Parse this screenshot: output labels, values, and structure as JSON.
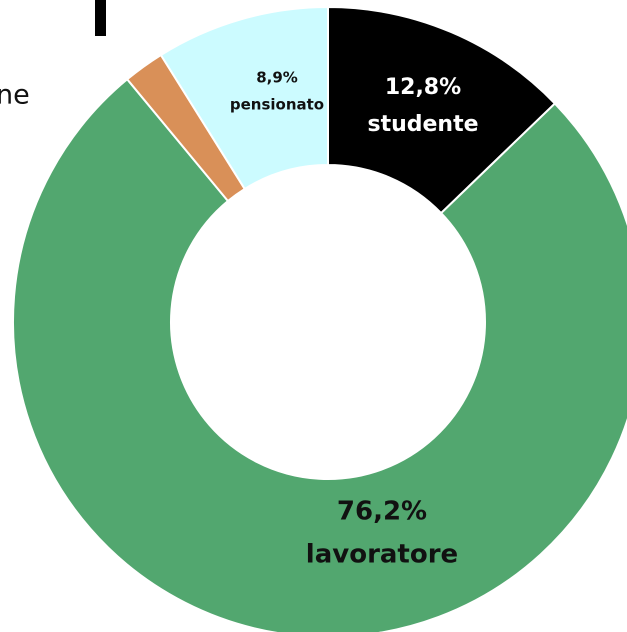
{
  "fragment": "ne",
  "chart_data": {
    "type": "donut",
    "categories": [
      "studente",
      "lavoratore",
      null,
      "pensionato"
    ],
    "values": [
      12.8,
      76.2,
      2.1,
      8.9
    ],
    "value_labels": [
      "12,8%",
      "76,2%",
      null,
      "8,9%"
    ],
    "colors": [
      "#000000",
      "#52a76f",
      "#d99058",
      "#ccfbff"
    ],
    "label_colors": [
      "#ffffff",
      "#111111",
      null,
      "#111111"
    ]
  }
}
